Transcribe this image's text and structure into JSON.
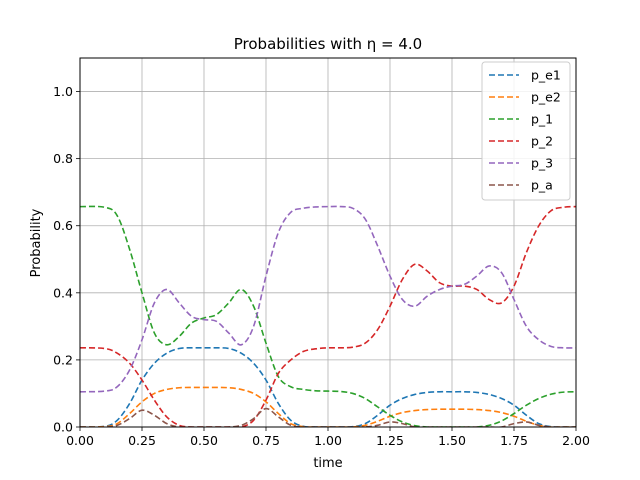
{
  "chart_data": {
    "type": "line",
    "title": "Probabilities with η = 4.0",
    "xlabel": "time",
    "ylabel": "Probability",
    "xlim": [
      0.0,
      2.0
    ],
    "ylim": [
      0.0,
      1.1
    ],
    "xticks": [
      "0.00",
      "0.25",
      "0.50",
      "0.75",
      "1.00",
      "1.25",
      "1.50",
      "1.75",
      "2.00"
    ],
    "yticks": [
      "0.0",
      "0.2",
      "0.4",
      "0.6",
      "0.8",
      "1.0"
    ],
    "grid": true,
    "line_style": "dashed",
    "legend_position": "top-right",
    "x": [
      0.0,
      0.1,
      0.15,
      0.2,
      0.25,
      0.3,
      0.35,
      0.4,
      0.45,
      0.5,
      0.55,
      0.6,
      0.65,
      0.7,
      0.75,
      0.8,
      0.85,
      0.9,
      0.95,
      1.0,
      1.05,
      1.1,
      1.15,
      1.2,
      1.25,
      1.3,
      1.35,
      1.4,
      1.45,
      1.5,
      1.55,
      1.6,
      1.65,
      1.7,
      1.75,
      1.8,
      1.85,
      1.9,
      1.95,
      2.0
    ],
    "series": [
      {
        "name": "p_e1",
        "color": "#1f77b4",
        "values": [
          0.0,
          0.002,
          0.02,
          0.07,
          0.14,
          0.19,
          0.22,
          0.234,
          0.236,
          0.236,
          0.236,
          0.234,
          0.22,
          0.19,
          0.14,
          0.07,
          0.02,
          0.002,
          0.0,
          0.0,
          0.0,
          0.001,
          0.01,
          0.035,
          0.065,
          0.085,
          0.097,
          0.103,
          0.105,
          0.105,
          0.105,
          0.103,
          0.097,
          0.085,
          0.065,
          0.035,
          0.01,
          0.001,
          0.0,
          0.0
        ]
      },
      {
        "name": "p_e2",
        "color": "#ff7f0e",
        "values": [
          0.0,
          0.001,
          0.01,
          0.04,
          0.075,
          0.1,
          0.112,
          0.117,
          0.118,
          0.118,
          0.118,
          0.117,
          0.112,
          0.1,
          0.075,
          0.04,
          0.01,
          0.001,
          0.0,
          0.0,
          0.0,
          0.0,
          0.005,
          0.017,
          0.032,
          0.043,
          0.049,
          0.052,
          0.053,
          0.053,
          0.053,
          0.052,
          0.049,
          0.043,
          0.032,
          0.017,
          0.005,
          0.0,
          0.0,
          0.0
        ]
      },
      {
        "name": "p_1",
        "color": "#2ca02c",
        "values": [
          0.657,
          0.655,
          0.63,
          0.53,
          0.4,
          0.28,
          0.245,
          0.27,
          0.31,
          0.325,
          0.335,
          0.37,
          0.41,
          0.36,
          0.25,
          0.15,
          0.12,
          0.112,
          0.108,
          0.107,
          0.106,
          0.1,
          0.085,
          0.06,
          0.035,
          0.015,
          0.004,
          0.0,
          0.0,
          0.0,
          0.0,
          0.0,
          0.005,
          0.018,
          0.04,
          0.065,
          0.085,
          0.098,
          0.104,
          0.105
        ]
      },
      {
        "name": "p_2",
        "color": "#d62728",
        "values": [
          0.236,
          0.234,
          0.22,
          0.19,
          0.14,
          0.08,
          0.03,
          0.005,
          0.0,
          0.0,
          0.0,
          0.0,
          0.0,
          0.02,
          0.08,
          0.16,
          0.2,
          0.225,
          0.233,
          0.236,
          0.236,
          0.238,
          0.25,
          0.29,
          0.36,
          0.44,
          0.485,
          0.465,
          0.43,
          0.42,
          0.42,
          0.41,
          0.38,
          0.37,
          0.42,
          0.52,
          0.6,
          0.645,
          0.655,
          0.657
        ]
      },
      {
        "name": "p_3",
        "color": "#9467bd",
        "values": [
          0.105,
          0.107,
          0.12,
          0.17,
          0.26,
          0.37,
          0.41,
          0.37,
          0.33,
          0.32,
          0.315,
          0.28,
          0.245,
          0.3,
          0.45,
          0.58,
          0.64,
          0.652,
          0.656,
          0.657,
          0.657,
          0.652,
          0.62,
          0.54,
          0.45,
          0.38,
          0.36,
          0.39,
          0.41,
          0.42,
          0.425,
          0.45,
          0.48,
          0.46,
          0.38,
          0.3,
          0.26,
          0.24,
          0.236,
          0.236
        ]
      },
      {
        "name": "p_a",
        "color": "#8c564b",
        "values": [
          0.0,
          0.0,
          0.005,
          0.025,
          0.05,
          0.035,
          0.01,
          0.0,
          0.0,
          0.0,
          0.0,
          0.0,
          0.005,
          0.025,
          0.055,
          0.03,
          0.005,
          0.0,
          0.0,
          0.0,
          0.0,
          0.0,
          0.0,
          0.005,
          0.015,
          0.01,
          0.0,
          0.0,
          0.0,
          0.0,
          0.0,
          0.0,
          0.0,
          0.0,
          0.01,
          0.015,
          0.005,
          0.0,
          0.0,
          0.0
        ]
      }
    ]
  }
}
